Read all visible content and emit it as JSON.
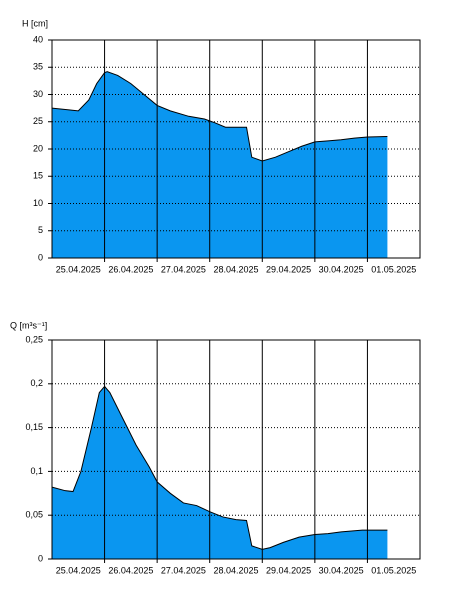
{
  "chart_data": [
    {
      "type": "area",
      "ylabel": "H [cm]",
      "color": "#0a96f0",
      "x": [
        0,
        0.3,
        0.5,
        0.7,
        0.85,
        1.0,
        1.05,
        1.25,
        1.5,
        1.75,
        2.0,
        2.25,
        2.6,
        2.9,
        3.1,
        3.3,
        3.7,
        3.8,
        4.0,
        4.25,
        4.5,
        4.75,
        5.0,
        5.25,
        5.5,
        5.75,
        6.0,
        6.38
      ],
      "values": [
        27.5,
        27.2,
        27,
        29,
        32,
        34,
        34.2,
        33.5,
        32,
        30,
        28,
        27,
        26,
        25.5,
        24.8,
        24,
        24,
        18.5,
        17.8,
        18.5,
        19.5,
        20.5,
        21.3,
        21.5,
        21.7,
        22,
        22.2,
        22.3
      ],
      "xlim": [
        0,
        7
      ],
      "xticks": [
        {
          "value": 0.5,
          "label": "25.04.2025"
        },
        {
          "value": 1.5,
          "label": "26.04.2025"
        },
        {
          "value": 2.5,
          "label": "27.04.2025"
        },
        {
          "value": 3.5,
          "label": "28.04.2025"
        },
        {
          "value": 4.5,
          "label": "29.04.2025"
        },
        {
          "value": 5.5,
          "label": "30.04.2025"
        },
        {
          "value": 6.5,
          "label": "01.05.2025"
        }
      ],
      "day_lines": [
        1,
        2,
        3,
        4,
        5,
        6
      ],
      "ylim": [
        0,
        40
      ],
      "yticks": [
        0,
        5,
        10,
        15,
        20,
        25,
        30,
        35,
        40
      ],
      "grid": true
    },
    {
      "type": "area",
      "ylabel": "Q [m³s⁻¹]",
      "color": "#0a96f0",
      "x": [
        0,
        0.25,
        0.4,
        0.55,
        0.75,
        0.9,
        1.0,
        1.1,
        1.35,
        1.6,
        1.85,
        2.0,
        2.25,
        2.5,
        2.75,
        3.0,
        3.25,
        3.5,
        3.7,
        3.8,
        4.0,
        4.15,
        4.4,
        4.7,
        5.0,
        5.25,
        5.5,
        5.9,
        6.38
      ],
      "values": [
        0.082,
        0.078,
        0.077,
        0.1,
        0.15,
        0.19,
        0.197,
        0.19,
        0.16,
        0.13,
        0.105,
        0.088,
        0.075,
        0.064,
        0.061,
        0.054,
        0.048,
        0.045,
        0.044,
        0.015,
        0.011,
        0.013,
        0.019,
        0.025,
        0.028,
        0.029,
        0.031,
        0.033,
        0.033
      ],
      "xlim": [
        0,
        7
      ],
      "xticks": [
        {
          "value": 0.5,
          "label": "25.04.2025"
        },
        {
          "value": 1.5,
          "label": "26.04.2025"
        },
        {
          "value": 2.5,
          "label": "27.04.2025"
        },
        {
          "value": 3.5,
          "label": "28.04.2025"
        },
        {
          "value": 4.5,
          "label": "29.04.2025"
        },
        {
          "value": 5.5,
          "label": "30.04.2025"
        },
        {
          "value": 6.5,
          "label": "01.05.2025"
        }
      ],
      "day_lines": [
        1,
        2,
        3,
        4,
        5,
        6
      ],
      "ylim": [
        0,
        0.25
      ],
      "yticks": [
        0,
        {
          "value": 0.05,
          "label": "0,05"
        },
        {
          "value": 0.1,
          "label": "0,1"
        },
        {
          "value": 0.15,
          "label": "0,15"
        },
        {
          "value": 0.2,
          "label": "0,2"
        },
        {
          "value": 0.25,
          "label": "0,25"
        }
      ],
      "grid": true
    }
  ]
}
